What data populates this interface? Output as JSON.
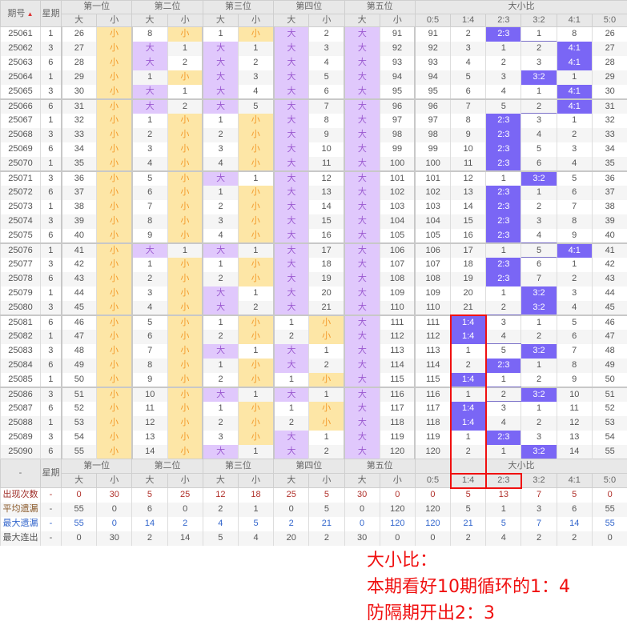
{
  "header": {
    "issue": "期号",
    "week": "星期",
    "positions": [
      "第一位",
      "第二位",
      "第三位",
      "第四位",
      "第五位"
    ],
    "big": "大",
    "small": "小",
    "ratio_title": "大小比",
    "ratios": [
      "0:5",
      "1:4",
      "2:3",
      "3:2",
      "4:1",
      "5:0"
    ],
    "sort_icon": "sort-asc-icon",
    "foot_dash": "-"
  },
  "colors": {
    "big_bg": "#e0c8fc",
    "small_bg": "#fde6a6",
    "highlight": "#7a66f5",
    "annotation": "#f01010"
  },
  "rows": [
    {
      "id": "25061",
      "wk": "1",
      "p": [
        [
          "26",
          "小"
        ],
        [
          "8",
          "小"
        ],
        [
          "1",
          "小"
        ],
        [
          "大",
          "2"
        ],
        [
          "大",
          "91"
        ]
      ],
      "r": [
        "91",
        "2",
        "2:3",
        "1",
        "8",
        "26"
      ],
      "h": 2
    },
    {
      "id": "25062",
      "wk": "3",
      "p": [
        [
          "27",
          "小"
        ],
        [
          "大",
          "1"
        ],
        [
          "大",
          "1"
        ],
        [
          "大",
          "3"
        ],
        [
          "大",
          "92"
        ]
      ],
      "r": [
        "92",
        "3",
        "1",
        "2",
        "4:1",
        "27"
      ],
      "h": 4
    },
    {
      "id": "25063",
      "wk": "6",
      "p": [
        [
          "28",
          "小"
        ],
        [
          "大",
          "2"
        ],
        [
          "大",
          "2"
        ],
        [
          "大",
          "4"
        ],
        [
          "大",
          "93"
        ]
      ],
      "r": [
        "93",
        "4",
        "2",
        "3",
        "4:1",
        "28"
      ],
      "h": 4
    },
    {
      "id": "25064",
      "wk": "1",
      "p": [
        [
          "29",
          "小"
        ],
        [
          "1",
          "小"
        ],
        [
          "大",
          "3"
        ],
        [
          "大",
          "5"
        ],
        [
          "大",
          "94"
        ]
      ],
      "r": [
        "94",
        "5",
        "3",
        "3:2",
        "1",
        "29"
      ],
      "h": 3
    },
    {
      "id": "25065",
      "wk": "3",
      "p": [
        [
          "30",
          "小"
        ],
        [
          "大",
          "1"
        ],
        [
          "大",
          "4"
        ],
        [
          "大",
          "6"
        ],
        [
          "大",
          "95"
        ]
      ],
      "r": [
        "95",
        "6",
        "4",
        "1",
        "4:1",
        "30"
      ],
      "h": 4
    },
    {
      "id": "25066",
      "wk": "6",
      "p": [
        [
          "31",
          "小"
        ],
        [
          "大",
          "2"
        ],
        [
          "大",
          "5"
        ],
        [
          "大",
          "7"
        ],
        [
          "大",
          "96"
        ]
      ],
      "r": [
        "96",
        "7",
        "5",
        "2",
        "4:1",
        "31"
      ],
      "h": 4
    },
    {
      "id": "25067",
      "wk": "1",
      "p": [
        [
          "32",
          "小"
        ],
        [
          "1",
          "小"
        ],
        [
          "1",
          "小"
        ],
        [
          "大",
          "8"
        ],
        [
          "大",
          "97"
        ]
      ],
      "r": [
        "97",
        "8",
        "2:3",
        "3",
        "1",
        "32"
      ],
      "h": 2
    },
    {
      "id": "25068",
      "wk": "3",
      "p": [
        [
          "33",
          "小"
        ],
        [
          "2",
          "小"
        ],
        [
          "2",
          "小"
        ],
        [
          "大",
          "9"
        ],
        [
          "大",
          "98"
        ]
      ],
      "r": [
        "98",
        "9",
        "2:3",
        "4",
        "2",
        "33"
      ],
      "h": 2
    },
    {
      "id": "25069",
      "wk": "6",
      "p": [
        [
          "34",
          "小"
        ],
        [
          "3",
          "小"
        ],
        [
          "3",
          "小"
        ],
        [
          "大",
          "10"
        ],
        [
          "大",
          "99"
        ]
      ],
      "r": [
        "99",
        "10",
        "2:3",
        "5",
        "3",
        "34"
      ],
      "h": 2
    },
    {
      "id": "25070",
      "wk": "1",
      "p": [
        [
          "35",
          "小"
        ],
        [
          "4",
          "小"
        ],
        [
          "4",
          "小"
        ],
        [
          "大",
          "11"
        ],
        [
          "大",
          "100"
        ]
      ],
      "r": [
        "100",
        "11",
        "2:3",
        "6",
        "4",
        "35"
      ],
      "h": 2
    },
    {
      "id": "25071",
      "wk": "3",
      "p": [
        [
          "36",
          "小"
        ],
        [
          "5",
          "小"
        ],
        [
          "大",
          "1"
        ],
        [
          "大",
          "12"
        ],
        [
          "大",
          "101"
        ]
      ],
      "r": [
        "101",
        "12",
        "1",
        "3:2",
        "5",
        "36"
      ],
      "h": 3
    },
    {
      "id": "25072",
      "wk": "6",
      "p": [
        [
          "37",
          "小"
        ],
        [
          "6",
          "小"
        ],
        [
          "1",
          "小"
        ],
        [
          "大",
          "13"
        ],
        [
          "大",
          "102"
        ]
      ],
      "r": [
        "102",
        "13",
        "2:3",
        "1",
        "6",
        "37"
      ],
      "h": 2
    },
    {
      "id": "25073",
      "wk": "1",
      "p": [
        [
          "38",
          "小"
        ],
        [
          "7",
          "小"
        ],
        [
          "2",
          "小"
        ],
        [
          "大",
          "14"
        ],
        [
          "大",
          "103"
        ]
      ],
      "r": [
        "103",
        "14",
        "2:3",
        "2",
        "7",
        "38"
      ],
      "h": 2
    },
    {
      "id": "25074",
      "wk": "3",
      "p": [
        [
          "39",
          "小"
        ],
        [
          "8",
          "小"
        ],
        [
          "3",
          "小"
        ],
        [
          "大",
          "15"
        ],
        [
          "大",
          "104"
        ]
      ],
      "r": [
        "104",
        "15",
        "2:3",
        "3",
        "8",
        "39"
      ],
      "h": 2
    },
    {
      "id": "25075",
      "wk": "6",
      "p": [
        [
          "40",
          "小"
        ],
        [
          "9",
          "小"
        ],
        [
          "4",
          "小"
        ],
        [
          "大",
          "16"
        ],
        [
          "大",
          "105"
        ]
      ],
      "r": [
        "105",
        "16",
        "2:3",
        "4",
        "9",
        "40"
      ],
      "h": 2
    },
    {
      "id": "25076",
      "wk": "1",
      "p": [
        [
          "41",
          "小"
        ],
        [
          "大",
          "1"
        ],
        [
          "大",
          "1"
        ],
        [
          "大",
          "17"
        ],
        [
          "大",
          "106"
        ]
      ],
      "r": [
        "106",
        "17",
        "1",
        "5",
        "4:1",
        "41"
      ],
      "h": 4
    },
    {
      "id": "25077",
      "wk": "3",
      "p": [
        [
          "42",
          "小"
        ],
        [
          "1",
          "小"
        ],
        [
          "1",
          "小"
        ],
        [
          "大",
          "18"
        ],
        [
          "大",
          "107"
        ]
      ],
      "r": [
        "107",
        "18",
        "2:3",
        "6",
        "1",
        "42"
      ],
      "h": 2
    },
    {
      "id": "25078",
      "wk": "6",
      "p": [
        [
          "43",
          "小"
        ],
        [
          "2",
          "小"
        ],
        [
          "2",
          "小"
        ],
        [
          "大",
          "19"
        ],
        [
          "大",
          "108"
        ]
      ],
      "r": [
        "108",
        "19",
        "2:3",
        "7",
        "2",
        "43"
      ],
      "h": 2
    },
    {
      "id": "25079",
      "wk": "1",
      "p": [
        [
          "44",
          "小"
        ],
        [
          "3",
          "小"
        ],
        [
          "大",
          "1"
        ],
        [
          "大",
          "20"
        ],
        [
          "大",
          "109"
        ]
      ],
      "r": [
        "109",
        "20",
        "1",
        "3:2",
        "3",
        "44"
      ],
      "h": 3
    },
    {
      "id": "25080",
      "wk": "3",
      "p": [
        [
          "45",
          "小"
        ],
        [
          "4",
          "小"
        ],
        [
          "大",
          "2"
        ],
        [
          "大",
          "21"
        ],
        [
          "大",
          "110"
        ]
      ],
      "r": [
        "110",
        "21",
        "2",
        "3:2",
        "4",
        "45"
      ],
      "h": 3
    },
    {
      "id": "25081",
      "wk": "6",
      "p": [
        [
          "46",
          "小"
        ],
        [
          "5",
          "小"
        ],
        [
          "1",
          "小"
        ],
        [
          "1",
          "小"
        ],
        [
          "大",
          "111"
        ]
      ],
      "r": [
        "111",
        "1:4",
        "3",
        "1",
        "5",
        "46"
      ],
      "h": 1
    },
    {
      "id": "25082",
      "wk": "1",
      "p": [
        [
          "47",
          "小"
        ],
        [
          "6",
          "小"
        ],
        [
          "2",
          "小"
        ],
        [
          "2",
          "小"
        ],
        [
          "大",
          "112"
        ]
      ],
      "r": [
        "112",
        "1:4",
        "4",
        "2",
        "6",
        "47"
      ],
      "h": 1
    },
    {
      "id": "25083",
      "wk": "3",
      "p": [
        [
          "48",
          "小"
        ],
        [
          "7",
          "小"
        ],
        [
          "大",
          "1"
        ],
        [
          "大",
          "1"
        ],
        [
          "大",
          "113"
        ]
      ],
      "r": [
        "113",
        "1",
        "5",
        "3:2",
        "7",
        "48"
      ],
      "h": 3
    },
    {
      "id": "25084",
      "wk": "6",
      "p": [
        [
          "49",
          "小"
        ],
        [
          "8",
          "小"
        ],
        [
          "1",
          "小"
        ],
        [
          "大",
          "2"
        ],
        [
          "大",
          "114"
        ]
      ],
      "r": [
        "114",
        "2",
        "2:3",
        "1",
        "8",
        "49"
      ],
      "h": 2
    },
    {
      "id": "25085",
      "wk": "1",
      "p": [
        [
          "50",
          "小"
        ],
        [
          "9",
          "小"
        ],
        [
          "2",
          "小"
        ],
        [
          "1",
          "小"
        ],
        [
          "大",
          "115"
        ]
      ],
      "r": [
        "115",
        "1:4",
        "1",
        "2",
        "9",
        "50"
      ],
      "h": 1
    },
    {
      "id": "25086",
      "wk": "3",
      "p": [
        [
          "51",
          "小"
        ],
        [
          "10",
          "小"
        ],
        [
          "大",
          "1"
        ],
        [
          "大",
          "1"
        ],
        [
          "大",
          "116"
        ]
      ],
      "r": [
        "116",
        "1",
        "2",
        "3:2",
        "10",
        "51"
      ],
      "h": 3
    },
    {
      "id": "25087",
      "wk": "6",
      "p": [
        [
          "52",
          "小"
        ],
        [
          "11",
          "小"
        ],
        [
          "1",
          "小"
        ],
        [
          "1",
          "小"
        ],
        [
          "大",
          "117"
        ]
      ],
      "r": [
        "117",
        "1:4",
        "3",
        "1",
        "11",
        "52"
      ],
      "h": 1
    },
    {
      "id": "25088",
      "wk": "1",
      "p": [
        [
          "53",
          "小"
        ],
        [
          "12",
          "小"
        ],
        [
          "2",
          "小"
        ],
        [
          "2",
          "小"
        ],
        [
          "大",
          "118"
        ]
      ],
      "r": [
        "118",
        "1:4",
        "4",
        "2",
        "12",
        "53"
      ],
      "h": 1
    },
    {
      "id": "25089",
      "wk": "3",
      "p": [
        [
          "54",
          "小"
        ],
        [
          "13",
          "小"
        ],
        [
          "3",
          "小"
        ],
        [
          "大",
          "1"
        ],
        [
          "大",
          "119"
        ]
      ],
      "r": [
        "119",
        "1",
        "2:3",
        "3",
        "13",
        "54"
      ],
      "h": 2
    },
    {
      "id": "25090",
      "wk": "6",
      "p": [
        [
          "55",
          "小"
        ],
        [
          "14",
          "小"
        ],
        [
          "大",
          "1"
        ],
        [
          "大",
          "2"
        ],
        [
          "大",
          "120"
        ]
      ],
      "r": [
        "120",
        "2",
        "1",
        "3:2",
        "14",
        "55"
      ],
      "h": 3
    }
  ],
  "stats": [
    {
      "label": "出现次数",
      "v": [
        "-",
        "0",
        "30",
        "5",
        "25",
        "12",
        "18",
        "25",
        "5",
        "30",
        "0",
        "0",
        "5",
        "13",
        "7",
        "5",
        "0"
      ]
    },
    {
      "label": "平均遗漏",
      "v": [
        "-",
        "55",
        "0",
        "6",
        "0",
        "2",
        "1",
        "0",
        "5",
        "0",
        "120",
        "120",
        "5",
        "1",
        "3",
        "6",
        "55"
      ]
    },
    {
      "label": "最大遗漏",
      "v": [
        "-",
        "55",
        "0",
        "14",
        "2",
        "4",
        "5",
        "2",
        "21",
        "0",
        "120",
        "120",
        "21",
        "5",
        "7",
        "14",
        "55"
      ]
    },
    {
      "label": "最大连出",
      "v": [
        "-",
        "0",
        "30",
        "2",
        "14",
        "5",
        "4",
        "20",
        "2",
        "30",
        "0",
        "0",
        "2",
        "4",
        "2",
        "2",
        "0"
      ]
    }
  ],
  "annotation": {
    "line1": "大小比：",
    "line2": "本期看好10期循环的1：4",
    "line3": "防隔期开出2：3"
  }
}
